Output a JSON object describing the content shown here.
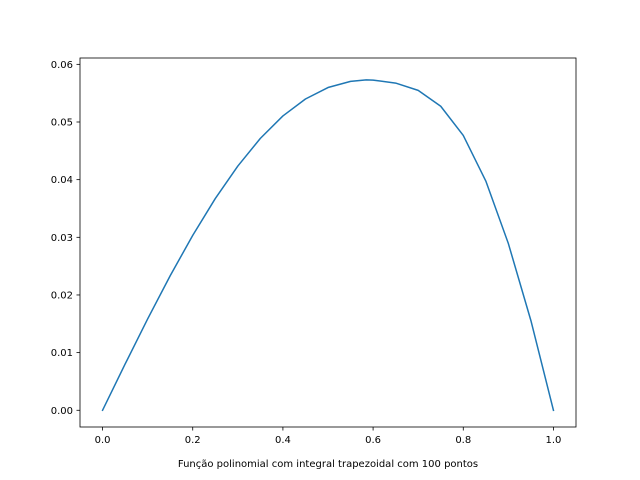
{
  "chart_data": {
    "type": "line",
    "xlabel": "Função polinomial com integral trapezoidal com 100 pontos",
    "ylabel": "",
    "title": "",
    "xlim": [
      -0.05,
      1.05
    ],
    "ylim": [
      -0.0029,
      0.0611
    ],
    "x_ticks": [
      0.0,
      0.2,
      0.4,
      0.6,
      0.8,
      1.0
    ],
    "x_tick_labels": [
      "0.0",
      "0.2",
      "0.4",
      "0.6",
      "0.8",
      "1.0"
    ],
    "y_ticks": [
      0.0,
      0.01,
      0.02,
      0.03,
      0.04,
      0.05,
      0.06
    ],
    "y_tick_labels": [
      "0.00",
      "0.01",
      "0.02",
      "0.03",
      "0.04",
      "0.05",
      "0.06"
    ],
    "grid": false,
    "line_color": "#1f77b4",
    "series": [
      {
        "x": [
          0.0,
          0.05,
          0.1,
          0.15,
          0.2,
          0.25,
          0.3,
          0.35,
          0.4,
          0.45,
          0.5,
          0.55,
          0.5848,
          0.6,
          0.65,
          0.7,
          0.75,
          0.8,
          0.85,
          0.9,
          0.95,
          1.0
        ],
        "values": [
          0.0,
          0.00801,
          0.01584,
          0.02333,
          0.03034,
          0.03672,
          0.04236,
          0.04716,
          0.05105,
          0.05399,
          0.05598,
          0.05705,
          0.0573,
          0.05727,
          0.05675,
          0.05548,
          0.05273,
          0.04767,
          0.03976,
          0.02892,
          0.01555,
          0.0
        ]
      }
    ]
  }
}
